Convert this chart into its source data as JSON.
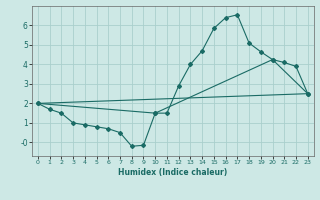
{
  "xlabel": "Humidex (Indice chaleur)",
  "ylabel": "",
  "background_color": "#cde8e5",
  "grid_color": "#aacfcc",
  "line_color": "#1a6b65",
  "xlim": [
    -0.5,
    23.5
  ],
  "ylim": [
    -0.7,
    7.0
  ],
  "yticks": [
    0,
    1,
    2,
    3,
    4,
    5,
    6
  ],
  "ytick_labels": [
    "-0",
    "1",
    "2",
    "3",
    "4",
    "5",
    "6"
  ],
  "xticks": [
    0,
    1,
    2,
    3,
    4,
    5,
    6,
    7,
    8,
    9,
    10,
    11,
    12,
    13,
    14,
    15,
    16,
    17,
    18,
    19,
    20,
    21,
    22,
    23
  ],
  "line1_x": [
    0,
    1,
    2,
    3,
    4,
    5,
    6,
    7,
    8,
    9,
    10,
    11,
    12,
    13,
    14,
    15,
    16,
    17,
    18,
    19,
    20,
    21,
    22,
    23
  ],
  "line1_y": [
    2.0,
    1.7,
    1.5,
    1.0,
    0.9,
    0.8,
    0.7,
    0.5,
    -0.2,
    -0.15,
    1.5,
    1.5,
    2.9,
    4.0,
    4.7,
    5.85,
    6.4,
    6.55,
    5.1,
    4.65,
    4.25,
    4.1,
    3.9,
    2.5
  ],
  "line2_x": [
    0,
    10,
    20,
    23
  ],
  "line2_y": [
    2.0,
    1.5,
    4.25,
    2.5
  ],
  "line3_x": [
    0,
    23
  ],
  "line3_y": [
    2.0,
    2.5
  ]
}
